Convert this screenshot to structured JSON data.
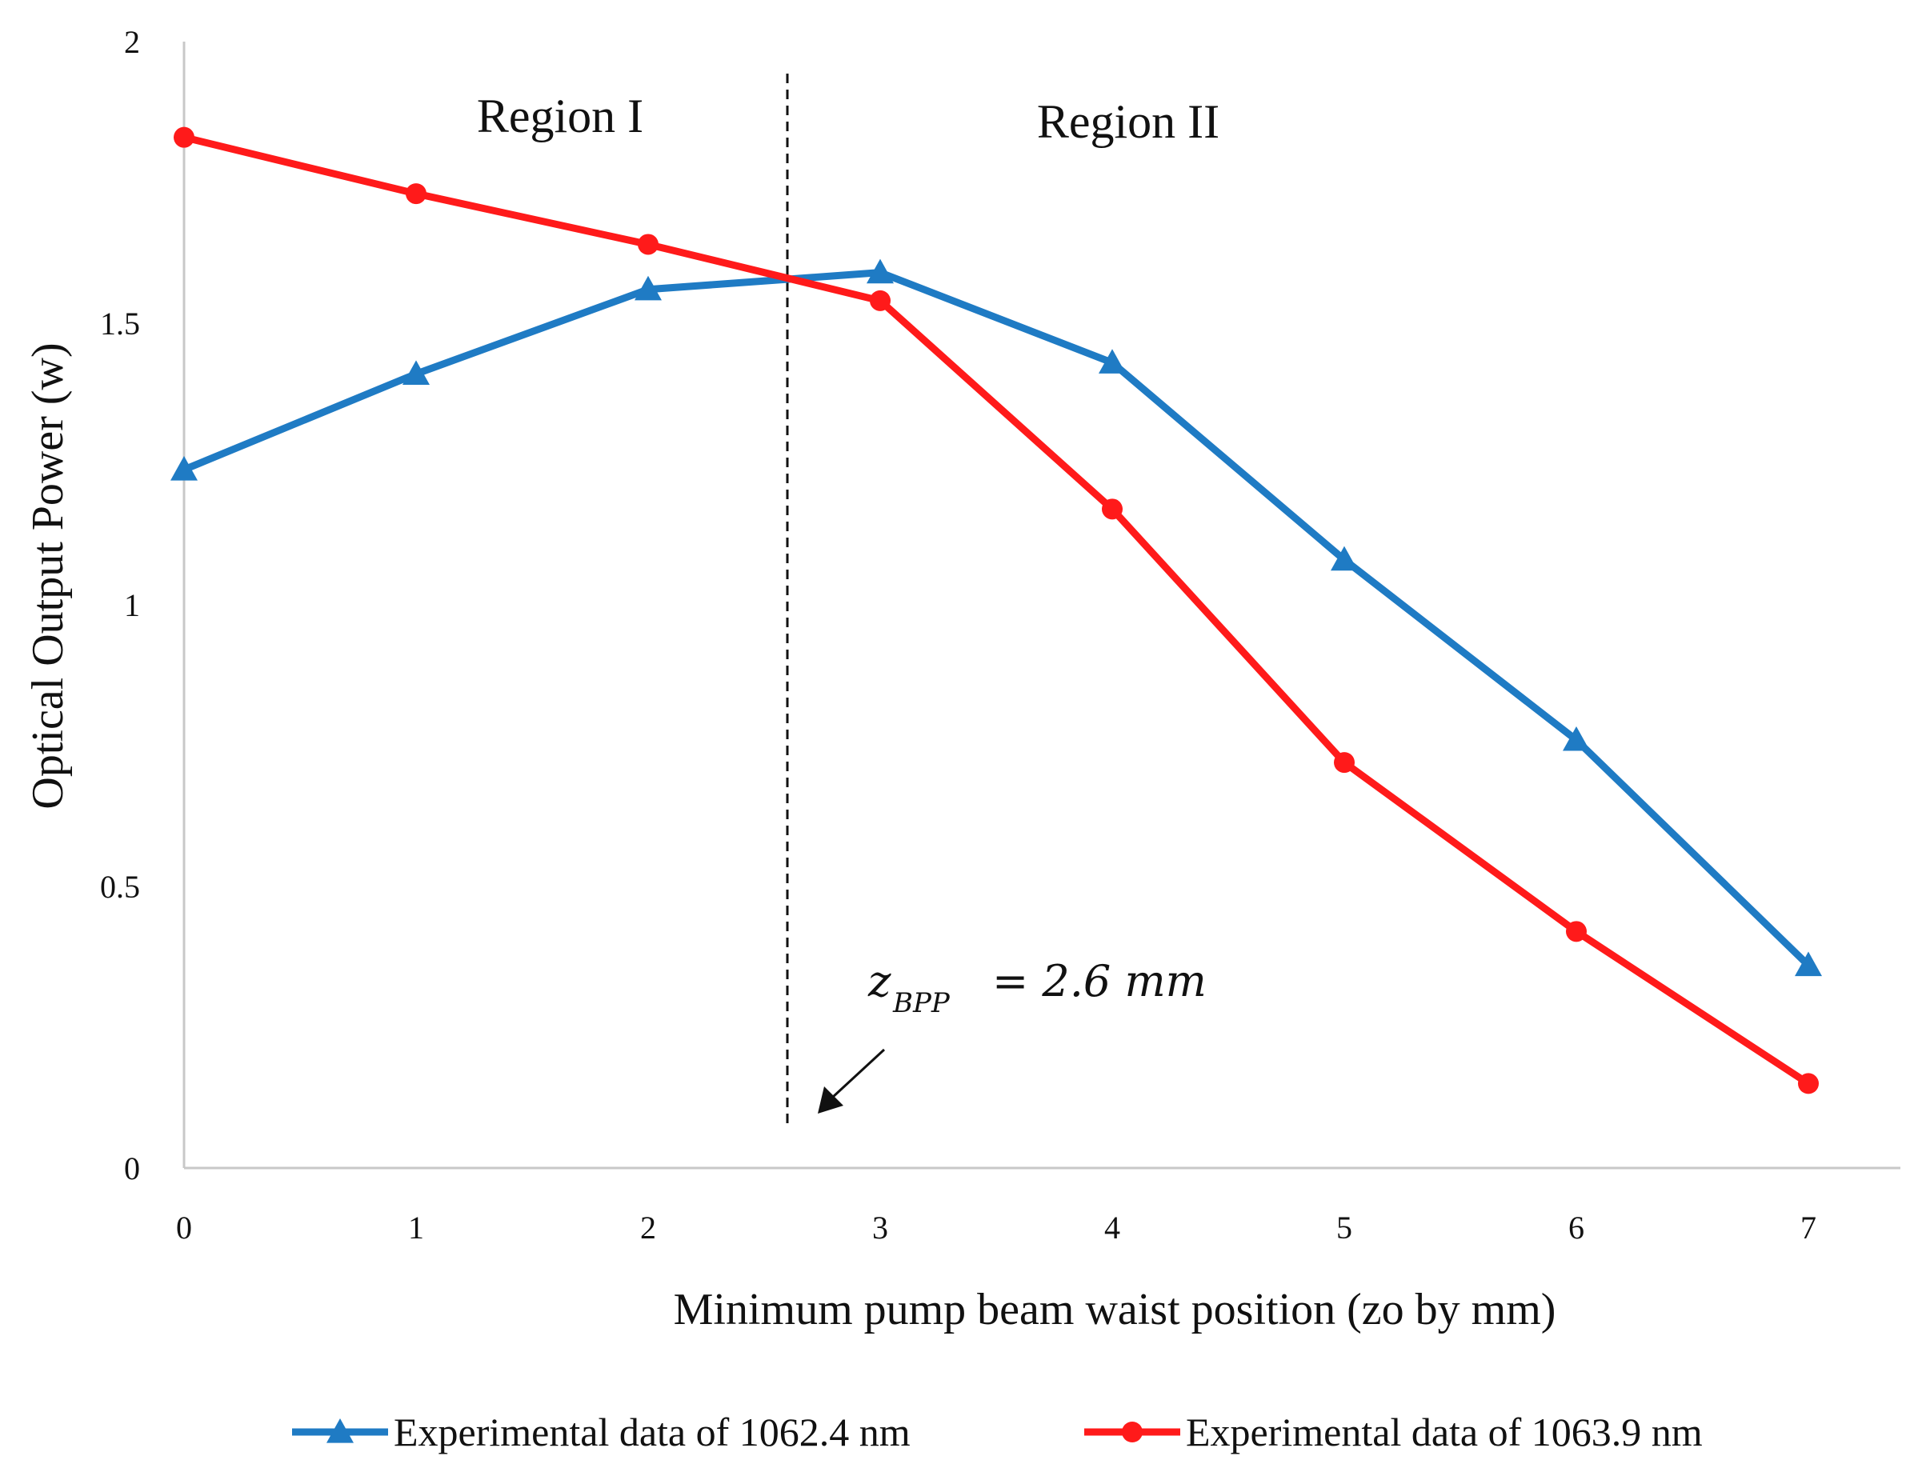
{
  "chart_data": {
    "type": "line",
    "x": [
      0,
      1,
      2,
      3,
      4,
      5,
      6,
      7
    ],
    "series": [
      {
        "name": "Experimental data of 1062.4 nm",
        "values": [
          1.24,
          1.41,
          1.56,
          1.59,
          1.43,
          1.08,
          0.76,
          0.36
        ],
        "color": "#1f7bc4",
        "marker": "triangle"
      },
      {
        "name": "Experimental data of 1063.9 nm",
        "values": [
          1.83,
          1.73,
          1.64,
          1.54,
          1.17,
          0.72,
          0.42,
          0.15
        ],
        "color": "#ff1a1a",
        "marker": "circle"
      }
    ],
    "title": "",
    "xlabel": "Minimum pump beam waist position (zo by mm)",
    "ylabel": "Optical Output Power (w)",
    "xlim": [
      0,
      7.4
    ],
    "ylim": [
      0,
      2
    ],
    "xticks": [
      "0",
      "1",
      "2",
      "3",
      "4",
      "5",
      "6",
      "7"
    ],
    "yticks": [
      "0",
      "0.5",
      "1",
      "1.5",
      "2"
    ],
    "grid": false,
    "legend": "bottom",
    "annotations": {
      "region1": "Region I",
      "region2": "Region II",
      "boundary_x": 2.6,
      "z_main": "z",
      "z_sub": "BPP",
      "z_eq": "= 2.6 mm"
    }
  }
}
